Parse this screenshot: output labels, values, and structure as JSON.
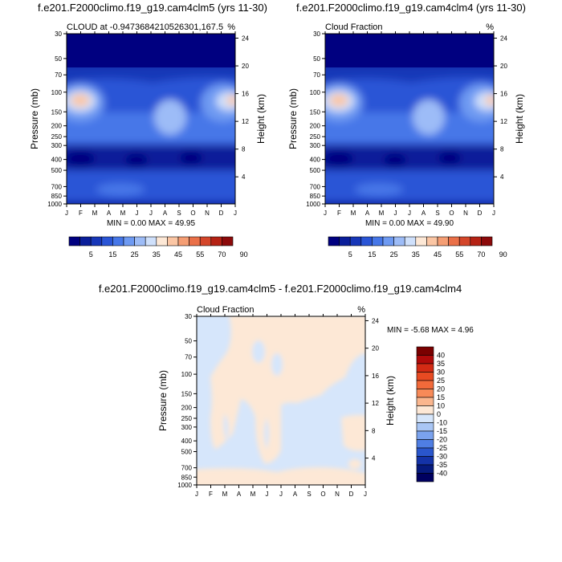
{
  "chart_data": [
    {
      "type": "heatmap",
      "title": "f.e201.F2000climo.f19_g19.cam4clm5 (yrs 11-30)",
      "left_label": "CLOUD at -0.9473684210526301,167.5",
      "right_label": "%",
      "xlabel": "",
      "ylabel": "Pressure (mb)",
      "y2label": "Height (km)",
      "x_ticks": [
        "J",
        "F",
        "M",
        "A",
        "M",
        "J",
        "J",
        "A",
        "S",
        "O",
        "N",
        "D",
        "J"
      ],
      "y_ticks": [
        "30",
        "50",
        "70",
        "100",
        "150",
        "200",
        "250",
        "300",
        "400",
        "500",
        "700",
        "850",
        "1000"
      ],
      "y2_ticks": [
        "24",
        "20",
        "16",
        "12",
        "8",
        "4"
      ],
      "stats_text": "MIN =  0.00 MAX =  49.95",
      "min": 0.0,
      "max": 49.95,
      "colorbar_labels": [
        "5",
        "15",
        "25",
        "35",
        "45",
        "55",
        "70",
        "90"
      ]
    },
    {
      "type": "heatmap",
      "title": "f.e201.F2000climo.f19_g19.cam4clm4 (yrs 11-30)",
      "left_label": "Cloud Fraction",
      "right_label": "%",
      "xlabel": "",
      "ylabel": "Pressure (mb)",
      "y2label": "Height (km)",
      "x_ticks": [
        "J",
        "F",
        "M",
        "A",
        "M",
        "J",
        "J",
        "A",
        "S",
        "O",
        "N",
        "D",
        "J"
      ],
      "y_ticks": [
        "30",
        "50",
        "70",
        "100",
        "150",
        "200",
        "250",
        "300",
        "400",
        "500",
        "700",
        "850",
        "1000"
      ],
      "y2_ticks": [
        "24",
        "20",
        "16",
        "12",
        "8",
        "4"
      ],
      "stats_text": "MIN =  0.00 MAX =  49.90",
      "min": 0.0,
      "max": 49.9,
      "colorbar_labels": [
        "5",
        "15",
        "25",
        "35",
        "45",
        "55",
        "70",
        "90"
      ]
    },
    {
      "type": "heatmap",
      "title": "f.e201.F2000climo.f19_g19.cam4clm5 - f.e201.F2000climo.f19_g19.cam4clm4",
      "left_label": "Cloud Fraction",
      "right_label": "%",
      "xlabel": "",
      "ylabel": "Pressure (mb)",
      "y2label": "Height (km)",
      "x_ticks": [
        "J",
        "F",
        "M",
        "A",
        "M",
        "J",
        "J",
        "A",
        "S",
        "O",
        "N",
        "D",
        "J"
      ],
      "y_ticks": [
        "30",
        "50",
        "70",
        "100",
        "150",
        "200",
        "250",
        "300",
        "400",
        "500",
        "700",
        "850",
        "1000"
      ],
      "y2_ticks": [
        "24",
        "20",
        "16",
        "12",
        "8",
        "4"
      ],
      "stats_text": "MIN = -5.68 MAX =  4.96",
      "min": -5.68,
      "max": 4.96,
      "colorbar_labels": [
        "40",
        "35",
        "30",
        "25",
        "20",
        "15",
        "10",
        "0",
        "-10",
        "-15",
        "-20",
        "-25",
        "-30",
        "-35",
        "-40"
      ]
    }
  ],
  "palettes": {
    "cloud": [
      "#000080",
      "#0a1e9a",
      "#1737b8",
      "#2a55d6",
      "#4677e8",
      "#6e9af2",
      "#9dbcf7",
      "#cfe0fb",
      "#fde8d6",
      "#fbc6a4",
      "#f59e74",
      "#ea7048",
      "#d4462a",
      "#b52214",
      "#8c0a0a"
    ],
    "diff": [
      "#7a0000",
      "#b00a0a",
      "#d32a14",
      "#e84a22",
      "#f26a3a",
      "#f78a58",
      "#fab68e",
      "#fde8d6",
      "#d6e6fb",
      "#a9c6f5",
      "#7aa2ee",
      "#4f7ee3",
      "#2a56cc",
      "#1433a8",
      "#061a7e",
      "#000060"
    ],
    "diff_fill_positive": "#fde8d6",
    "diff_fill_negative": "#d6e6fb"
  }
}
